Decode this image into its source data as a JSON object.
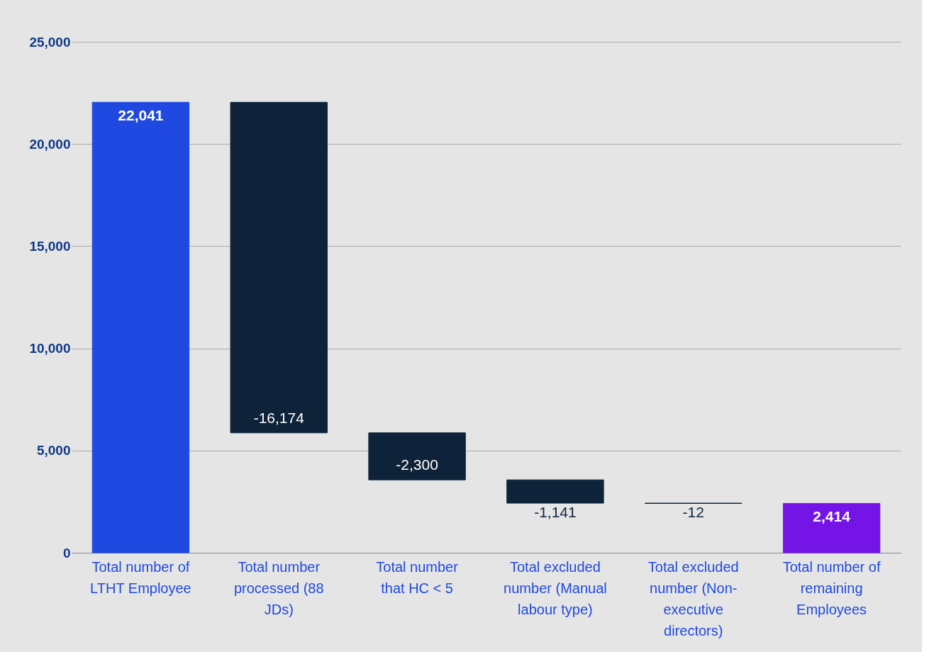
{
  "chart_data": {
    "type": "bar",
    "categories": [
      "Total number of LTHT Employee",
      "Total number processed (88 JDs)",
      "Total number that HC < 5",
      "Total excluded number (Manual labour type)",
      "Total excluded number (Non-executive directors)",
      "Total number of remaining Employees"
    ],
    "values": [
      22041,
      -16174,
      -2300,
      -1141,
      -12,
      2414
    ],
    "base": [
      0,
      22041,
      5867,
      3567,
      2426,
      0
    ],
    "colors": [
      "#1f49e0",
      "#0e2339",
      "#0e2339",
      "#0e2339",
      "#0e2339",
      "#7514e6"
    ],
    "value_labels": [
      "22,041",
      "-16,174",
      "-2,300",
      "-1,141",
      "-12",
      "2,414"
    ],
    "ylim": [
      0,
      25000
    ],
    "yticks": [
      {
        "value": 0,
        "label": "0"
      },
      {
        "value": 5000,
        "label": "5,000"
      },
      {
        "value": 10000,
        "label": "10,000"
      },
      {
        "value": 15000,
        "label": "15,000"
      },
      {
        "value": 20000,
        "label": "20,000"
      },
      {
        "value": 25000,
        "label": "25,000"
      }
    ],
    "grid": "y"
  }
}
